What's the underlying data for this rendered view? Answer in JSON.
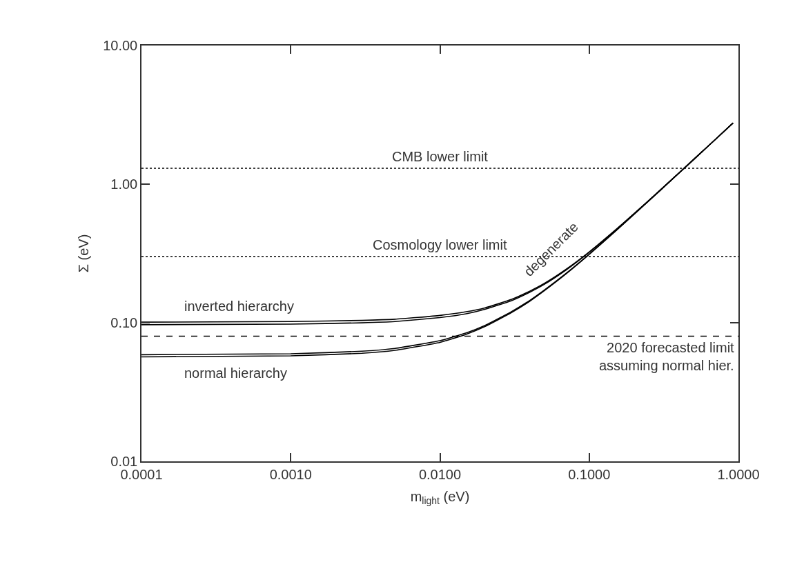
{
  "chart_data": {
    "type": "line",
    "xlabel": "m$_{light}$ (eV)",
    "ylabel": "Σ (eV)",
    "log": "xy",
    "x": [
      0.0001,
      0.001,
      0.003,
      0.005,
      0.01,
      0.015,
      0.02,
      0.03,
      0.04,
      0.05,
      0.07,
      0.1,
      0.15,
      0.2,
      0.3,
      0.5,
      0.7,
      0.92
    ],
    "series": [
      {
        "name": "inverted hierarchy",
        "color": "#000000",
        "values": [
          0.101,
          0.102,
          0.104,
          0.106,
          0.113,
          0.12,
          0.128,
          0.147,
          0.169,
          0.192,
          0.243,
          0.324,
          0.467,
          0.613,
          0.908,
          1.51,
          2.1,
          2.76
        ]
      },
      {
        "color": "#000000",
        "values": [
          0.0968,
          0.0977,
          0.0999,
          0.102,
          0.109,
          0.116,
          0.125,
          0.144,
          0.166,
          0.189,
          0.24,
          0.322,
          0.465,
          0.612,
          0.908,
          1.5,
          2.1,
          2.76
        ]
      },
      {
        "color": "#000000",
        "values": [
          0.0588,
          0.0597,
          0.0623,
          0.0653,
          0.0742,
          0.0845,
          0.0956,
          0.12,
          0.145,
          0.172,
          0.227,
          0.312,
          0.458,
          0.606,
          0.904,
          1.5,
          2.1,
          2.76
        ]
      },
      {
        "name": "normal hierarchy",
        "color": "#000000",
        "values": [
          0.0567,
          0.0577,
          0.0602,
          0.0632,
          0.0722,
          0.0826,
          0.0938,
          0.118,
          0.143,
          0.17,
          0.225,
          0.311,
          0.458,
          0.606,
          0.904,
          1.5,
          2.1,
          2.76
        ]
      }
    ],
    "xlim": [
      0.0001,
      1
    ],
    "ylim": [
      0.01,
      10
    ],
    "xticks": [
      {
        "value": 0.0001,
        "label": "0.0001"
      },
      {
        "value": 0.001,
        "label": "0.0010"
      },
      {
        "value": 0.01,
        "label": "0.0100"
      },
      {
        "value": 0.1,
        "label": "0.1000"
      },
      {
        "value": 1,
        "label": "1.0000"
      }
    ],
    "yticks": [
      {
        "value": 0.01,
        "label": "0.01"
      },
      {
        "value": 0.1,
        "label": "0.10"
      },
      {
        "value": 1,
        "label": "1.00"
      },
      {
        "value": 10,
        "label": "10.00"
      }
    ],
    "ref_lines": [
      {
        "axis": "y",
        "value": 1.3,
        "label": "CMB lower limit",
        "line_style": "dotted",
        "color": "#000000"
      },
      {
        "axis": "y",
        "value": 0.3,
        "label": "Cosmology lower limit",
        "line_style": "dotted",
        "color": "#000000"
      },
      {
        "axis": "y",
        "value": 0.08,
        "label": "2020 forecasted limit\nassuming normal hier.",
        "line_style": "dashed",
        "color": "#000000"
      }
    ],
    "annotations": [
      "degenerate"
    ],
    "marker": "none",
    "line_style": "solid"
  }
}
